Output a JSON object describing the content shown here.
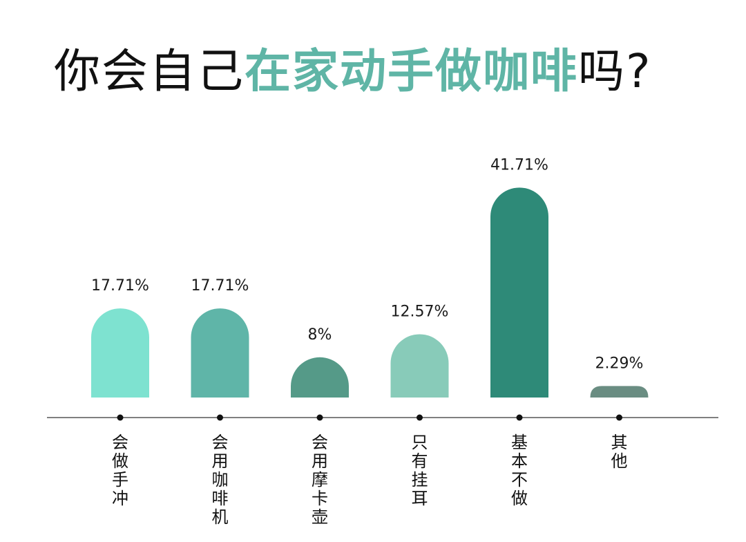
{
  "title": {
    "part1": "你会自己",
    "part2": "在家动手做咖啡",
    "part3": "吗?"
  },
  "colors": {
    "title_dark": "#111111",
    "title_accent": "#5fb5a6",
    "axis": "#555555"
  },
  "chart_data": {
    "type": "bar",
    "title": "你会自己在家动手做咖啡吗?",
    "xlabel": "",
    "ylabel": "",
    "unit": "%",
    "ylim": [
      0,
      45
    ],
    "grid": false,
    "categories": [
      "会做手冲",
      "会用咖啡机",
      "会用摩卡壶",
      "只有挂耳",
      "基本不做",
      "其他"
    ],
    "values": [
      17.71,
      17.71,
      8,
      12.57,
      41.71,
      2.29
    ],
    "value_labels": [
      "17.71%",
      "17.71%",
      "8%",
      "12.57%",
      "41.71%",
      "2.29%"
    ],
    "bar_colors": [
      "#7ee2d0",
      "#5fb5a8",
      "#559a88",
      "#88cbb9",
      "#2e8a78",
      "#6a8d82"
    ]
  }
}
